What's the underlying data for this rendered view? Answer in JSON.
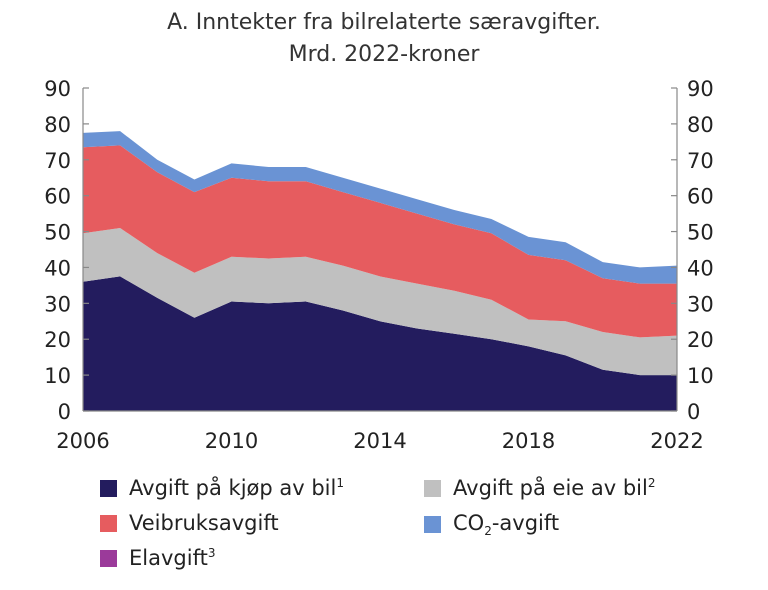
{
  "chart_data": {
    "type": "area",
    "stacked": true,
    "title": "A. Inntekter fra bilrelaterte særavgifter.",
    "subtitle": "Mrd. 2022-kroner",
    "xlabel": "",
    "ylabel": "",
    "ylim": [
      0,
      90
    ],
    "xlim": [
      2006,
      2022
    ],
    "y_ticks": [
      "0",
      "10",
      "20",
      "30",
      "40",
      "50",
      "60",
      "70",
      "80",
      "90"
    ],
    "x_ticks": [
      "2006",
      "2010",
      "2014",
      "2018",
      "2022"
    ],
    "x": [
      2006,
      2007,
      2008,
      2009,
      2010,
      2011,
      2012,
      2013,
      2014,
      2015,
      2016,
      2017,
      2018,
      2019,
      2020,
      2021,
      2022
    ],
    "series": [
      {
        "name": "Avgift på kjøp av bil",
        "sup": "1",
        "color": "#231c5e",
        "values": [
          36,
          37.5,
          31.5,
          26,
          30.5,
          30,
          30.5,
          28,
          25,
          23,
          21.5,
          20,
          18,
          15.5,
          11.5,
          10,
          10
        ]
      },
      {
        "name": "Avgift på eie av bil",
        "sup": "2",
        "color": "#c0c0c0",
        "values": [
          13.5,
          13.5,
          12.5,
          12.5,
          12.5,
          12.5,
          12.5,
          12.5,
          12.5,
          12.5,
          12,
          11,
          7.5,
          9.5,
          10.5,
          10.5,
          11
        ]
      },
      {
        "name": "Veibruksavgift",
        "sup": "",
        "color": "#e65c5f",
        "values": [
          24,
          23,
          22.5,
          22.5,
          22,
          21.5,
          21,
          20.5,
          20.5,
          19.5,
          18.5,
          18.5,
          18,
          17,
          15,
          15,
          14.5
        ]
      },
      {
        "name": "CO2-avgift",
        "sup": "",
        "color": "#6a93d4",
        "values": [
          4,
          4,
          3.5,
          3.5,
          4,
          4,
          4,
          4,
          4,
          4,
          4,
          4,
          5,
          5,
          4.5,
          4.5,
          5
        ]
      },
      {
        "name": "Elavgift",
        "sup": "3",
        "color": "#9b3a9a",
        "values": [
          0,
          0,
          0,
          0,
          0,
          0,
          0,
          0,
          0,
          0,
          0,
          0,
          0,
          0,
          0,
          0,
          0
        ]
      }
    ],
    "legend": {
      "position": "bottom",
      "items": [
        {
          "label": "Avgift på kjøp av bil",
          "sup": "1",
          "color": "#231c5e"
        },
        {
          "label": "Avgift på eie av bil",
          "sup": "2",
          "color": "#c0c0c0"
        },
        {
          "label": "Veibruksavgift",
          "color": "#e65c5f"
        },
        {
          "label_pre": "CO",
          "label_sub": "2",
          "label_post": "-avgift",
          "color": "#6a93d4"
        },
        {
          "label": "Elavgift",
          "sup": "3",
          "color": "#9b3a9a"
        }
      ]
    },
    "grid": false
  }
}
